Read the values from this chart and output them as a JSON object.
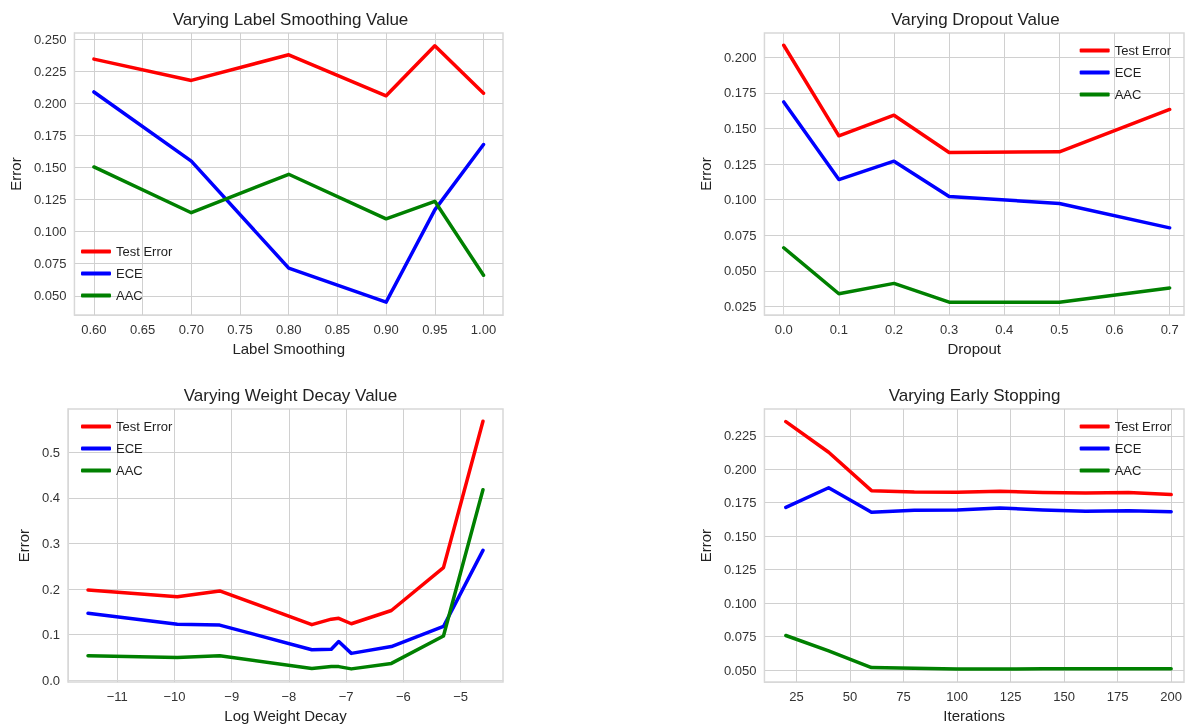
{
  "chart_data": [
    {
      "type": "line",
      "title": "Varying Label Smoothing Value",
      "xlabel": "Label Smoothing",
      "ylabel": "Error",
      "x": [
        0.6,
        0.7,
        0.8,
        0.9,
        0.95,
        1.0
      ],
      "series": [
        {
          "name": "Test Error",
          "color": "#ff0000",
          "values": [
            0.2346,
            0.218,
            0.238,
            0.206,
            0.245,
            0.208
          ]
        },
        {
          "name": "ECE",
          "color": "#0000ff",
          "values": [
            0.209,
            0.155,
            0.0716,
            0.045,
            0.117,
            0.168
          ]
        },
        {
          "name": "AAC",
          "color": "#008000",
          "values": [
            0.1505,
            0.1148,
            0.1448,
            0.11,
            0.1237,
            0.066
          ]
        }
      ],
      "xlim": [
        0.58,
        1.02
      ],
      "xticks": [
        {
          "value": 0.6,
          "label": "0.60"
        },
        {
          "value": 0.65,
          "label": "0.65"
        },
        {
          "value": 0.7,
          "label": "0.70"
        },
        {
          "value": 0.75,
          "label": "0.75"
        },
        {
          "value": 0.8,
          "label": "0.80"
        },
        {
          "value": 0.85,
          "label": "0.85"
        },
        {
          "value": 0.9,
          "label": "0.90"
        },
        {
          "value": 0.95,
          "label": "0.95"
        },
        {
          "value": 1.0,
          "label": "1.00"
        }
      ],
      "ylim": [
        0.035,
        0.255
      ],
      "yticks": [
        {
          "value": 0.05,
          "label": "0.050"
        },
        {
          "value": 0.075,
          "label": "0.075"
        },
        {
          "value": 0.1,
          "label": "0.100"
        },
        {
          "value": 0.125,
          "label": "0.125"
        },
        {
          "value": 0.15,
          "label": "0.150"
        },
        {
          "value": 0.175,
          "label": "0.175"
        },
        {
          "value": 0.2,
          "label": "0.200"
        },
        {
          "value": 0.225,
          "label": "0.225"
        },
        {
          "value": 0.25,
          "label": "0.250"
        }
      ],
      "grid": true,
      "legend": "bottom left",
      "marker": "none",
      "line_style": "solid"
    },
    {
      "type": "line",
      "title": "Varying Dropout Value",
      "xlabel": "Dropout",
      "ylabel": "Error",
      "x": [
        0.0,
        0.1,
        0.2,
        0.3,
        0.5,
        0.7
      ],
      "series": [
        {
          "name": "Test Error",
          "color": "#ff0000",
          "values": [
            0.2084,
            0.1448,
            0.1593,
            0.1331,
            0.1336,
            0.1633
          ]
        },
        {
          "name": "ECE",
          "color": "#0000ff",
          "values": [
            0.1686,
            0.1141,
            0.127,
            0.1022,
            0.0973,
            0.0802
          ]
        },
        {
          "name": "AAC",
          "color": "#008000",
          "values": [
            0.0662,
            0.0339,
            0.0412,
            0.028,
            0.028,
            0.038
          ]
        }
      ],
      "xlim": [
        -0.035,
        0.726
      ],
      "xticks": [
        {
          "value": 0,
          "label": "0.0"
        },
        0.1,
        0.2,
        0.3,
        0.4,
        0.5,
        0.6,
        0.7
      ],
      "ylim": [
        0.019,
        0.217
      ],
      "yticks": [
        {
          "value": 0.025,
          "label": "0.025"
        },
        {
          "value": 0.05,
          "label": "0.050"
        },
        {
          "value": 0.075,
          "label": "0.075"
        },
        {
          "value": 0.1,
          "label": "0.100"
        },
        {
          "value": 0.125,
          "label": "0.125"
        },
        {
          "value": 0.15,
          "label": "0.150"
        },
        {
          "value": 0.175,
          "label": "0.175"
        },
        {
          "value": 0.2,
          "label": "0.200"
        }
      ],
      "grid": true,
      "legend": "top right",
      "marker": "none",
      "line_style": "solid"
    },
    {
      "type": "line",
      "title": "Varying Weight Decay Value",
      "xlabel": "Log Weight Decay",
      "ylabel": "Error",
      "x": [
        -11.51,
        -9.95,
        -9.21,
        -7.6,
        -7.26,
        -7.13,
        -6.91,
        -6.21,
        -5.3,
        -4.61
      ],
      "series": [
        {
          "name": "Test Error",
          "color": "#ff0000",
          "values": [
            0.198,
            0.183,
            0.196,
            0.122,
            0.134,
            0.136,
            0.124,
            0.153,
            0.247,
            0.568
          ]
        },
        {
          "name": "ECE",
          "color": "#0000ff",
          "values": [
            0.147,
            0.123,
            0.121,
            0.067,
            0.068,
            0.085,
            0.059,
            0.074,
            0.118,
            0.285
          ]
        },
        {
          "name": "AAC",
          "color": "#008000",
          "values": [
            0.054,
            0.05,
            0.054,
            0.026,
            0.03,
            0.03,
            0.025,
            0.037,
            0.097,
            0.418
          ]
        }
      ],
      "xlim": [
        -11.86,
        -4.26
      ],
      "xticks": [
        {
          "value": -11,
          "label": "−11"
        },
        {
          "value": -10,
          "label": "−10"
        },
        {
          "value": -9,
          "label": "−9"
        },
        {
          "value": -8,
          "label": "−8"
        },
        {
          "value": -7,
          "label": "−7"
        },
        {
          "value": -6,
          "label": "−6"
        },
        {
          "value": -5,
          "label": "−5"
        }
      ],
      "ylim": [
        -0.004,
        0.595
      ],
      "yticks": [
        {
          "value": 0,
          "label": "0.0"
        },
        0.1,
        0.2,
        0.3,
        0.4,
        0.5
      ],
      "grid": true,
      "legend": "top left",
      "marker": "none",
      "line_style": "solid"
    },
    {
      "type": "line",
      "title": "Varying Early Stopping",
      "xlabel": "Iterations",
      "ylabel": "Error",
      "x": [
        20,
        40,
        60,
        80,
        100,
        120,
        140,
        160,
        180,
        200
      ],
      "series": [
        {
          "name": "Test Error",
          "color": "#ff0000",
          "values": [
            0.2356,
            0.2127,
            0.184,
            0.183,
            0.1828,
            0.1835,
            0.1826,
            0.1823,
            0.1826,
            0.1811
          ]
        },
        {
          "name": "ECE",
          "color": "#0000ff",
          "values": [
            0.1715,
            0.1862,
            0.1679,
            0.1694,
            0.1696,
            0.1711,
            0.1696,
            0.1687,
            0.169,
            0.1682
          ]
        },
        {
          "name": "AAC",
          "color": "#008000",
          "values": [
            0.0758,
            0.0643,
            0.0519,
            0.0514,
            0.0507,
            0.0507,
            0.051,
            0.051,
            0.051,
            0.051
          ]
        }
      ],
      "xlim": [
        10,
        206
      ],
      "xticks": [
        25,
        50,
        75,
        100,
        125,
        150,
        175,
        200
      ],
      "ylim": [
        0.041,
        0.245
      ],
      "yticks": [
        {
          "value": 0.05,
          "label": "0.050"
        },
        {
          "value": 0.075,
          "label": "0.075"
        },
        {
          "value": 0.1,
          "label": "0.100"
        },
        {
          "value": 0.125,
          "label": "0.125"
        },
        {
          "value": 0.15,
          "label": "0.150"
        },
        {
          "value": 0.175,
          "label": "0.175"
        },
        {
          "value": 0.2,
          "label": "0.200"
        },
        {
          "value": 0.225,
          "label": "0.225"
        }
      ],
      "grid": true,
      "legend": "top right",
      "marker": "none",
      "line_style": "solid"
    }
  ]
}
